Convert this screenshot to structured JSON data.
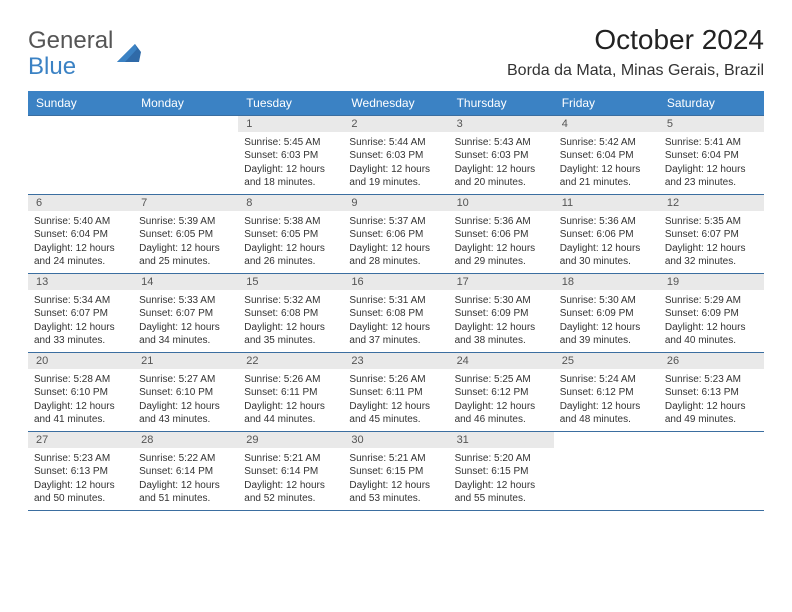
{
  "logo": {
    "line1": "General",
    "line2": "Blue"
  },
  "title": "October 2024",
  "location": "Borda da Mata, Minas Gerais, Brazil",
  "dayHeaders": [
    "Sunday",
    "Monday",
    "Tuesday",
    "Wednesday",
    "Thursday",
    "Friday",
    "Saturday"
  ],
  "colors": {
    "headerBg": "#3b82c4",
    "headerText": "#ffffff",
    "dayNumBg": "#e9e9e9",
    "border": "#3b6ea0",
    "text": "#333333"
  },
  "weeks": [
    [
      {
        "empty": true
      },
      {
        "empty": true
      },
      {
        "num": "1",
        "sunrise": "Sunrise: 5:45 AM",
        "sunset": "Sunset: 6:03 PM",
        "daylight1": "Daylight: 12 hours",
        "daylight2": "and 18 minutes."
      },
      {
        "num": "2",
        "sunrise": "Sunrise: 5:44 AM",
        "sunset": "Sunset: 6:03 PM",
        "daylight1": "Daylight: 12 hours",
        "daylight2": "and 19 minutes."
      },
      {
        "num": "3",
        "sunrise": "Sunrise: 5:43 AM",
        "sunset": "Sunset: 6:03 PM",
        "daylight1": "Daylight: 12 hours",
        "daylight2": "and 20 minutes."
      },
      {
        "num": "4",
        "sunrise": "Sunrise: 5:42 AM",
        "sunset": "Sunset: 6:04 PM",
        "daylight1": "Daylight: 12 hours",
        "daylight2": "and 21 minutes."
      },
      {
        "num": "5",
        "sunrise": "Sunrise: 5:41 AM",
        "sunset": "Sunset: 6:04 PM",
        "daylight1": "Daylight: 12 hours",
        "daylight2": "and 23 minutes."
      }
    ],
    [
      {
        "num": "6",
        "sunrise": "Sunrise: 5:40 AM",
        "sunset": "Sunset: 6:04 PM",
        "daylight1": "Daylight: 12 hours",
        "daylight2": "and 24 minutes."
      },
      {
        "num": "7",
        "sunrise": "Sunrise: 5:39 AM",
        "sunset": "Sunset: 6:05 PM",
        "daylight1": "Daylight: 12 hours",
        "daylight2": "and 25 minutes."
      },
      {
        "num": "8",
        "sunrise": "Sunrise: 5:38 AM",
        "sunset": "Sunset: 6:05 PM",
        "daylight1": "Daylight: 12 hours",
        "daylight2": "and 26 minutes."
      },
      {
        "num": "9",
        "sunrise": "Sunrise: 5:37 AM",
        "sunset": "Sunset: 6:06 PM",
        "daylight1": "Daylight: 12 hours",
        "daylight2": "and 28 minutes."
      },
      {
        "num": "10",
        "sunrise": "Sunrise: 5:36 AM",
        "sunset": "Sunset: 6:06 PM",
        "daylight1": "Daylight: 12 hours",
        "daylight2": "and 29 minutes."
      },
      {
        "num": "11",
        "sunrise": "Sunrise: 5:36 AM",
        "sunset": "Sunset: 6:06 PM",
        "daylight1": "Daylight: 12 hours",
        "daylight2": "and 30 minutes."
      },
      {
        "num": "12",
        "sunrise": "Sunrise: 5:35 AM",
        "sunset": "Sunset: 6:07 PM",
        "daylight1": "Daylight: 12 hours",
        "daylight2": "and 32 minutes."
      }
    ],
    [
      {
        "num": "13",
        "sunrise": "Sunrise: 5:34 AM",
        "sunset": "Sunset: 6:07 PM",
        "daylight1": "Daylight: 12 hours",
        "daylight2": "and 33 minutes."
      },
      {
        "num": "14",
        "sunrise": "Sunrise: 5:33 AM",
        "sunset": "Sunset: 6:07 PM",
        "daylight1": "Daylight: 12 hours",
        "daylight2": "and 34 minutes."
      },
      {
        "num": "15",
        "sunrise": "Sunrise: 5:32 AM",
        "sunset": "Sunset: 6:08 PM",
        "daylight1": "Daylight: 12 hours",
        "daylight2": "and 35 minutes."
      },
      {
        "num": "16",
        "sunrise": "Sunrise: 5:31 AM",
        "sunset": "Sunset: 6:08 PM",
        "daylight1": "Daylight: 12 hours",
        "daylight2": "and 37 minutes."
      },
      {
        "num": "17",
        "sunrise": "Sunrise: 5:30 AM",
        "sunset": "Sunset: 6:09 PM",
        "daylight1": "Daylight: 12 hours",
        "daylight2": "and 38 minutes."
      },
      {
        "num": "18",
        "sunrise": "Sunrise: 5:30 AM",
        "sunset": "Sunset: 6:09 PM",
        "daylight1": "Daylight: 12 hours",
        "daylight2": "and 39 minutes."
      },
      {
        "num": "19",
        "sunrise": "Sunrise: 5:29 AM",
        "sunset": "Sunset: 6:09 PM",
        "daylight1": "Daylight: 12 hours",
        "daylight2": "and 40 minutes."
      }
    ],
    [
      {
        "num": "20",
        "sunrise": "Sunrise: 5:28 AM",
        "sunset": "Sunset: 6:10 PM",
        "daylight1": "Daylight: 12 hours",
        "daylight2": "and 41 minutes."
      },
      {
        "num": "21",
        "sunrise": "Sunrise: 5:27 AM",
        "sunset": "Sunset: 6:10 PM",
        "daylight1": "Daylight: 12 hours",
        "daylight2": "and 43 minutes."
      },
      {
        "num": "22",
        "sunrise": "Sunrise: 5:26 AM",
        "sunset": "Sunset: 6:11 PM",
        "daylight1": "Daylight: 12 hours",
        "daylight2": "and 44 minutes."
      },
      {
        "num": "23",
        "sunrise": "Sunrise: 5:26 AM",
        "sunset": "Sunset: 6:11 PM",
        "daylight1": "Daylight: 12 hours",
        "daylight2": "and 45 minutes."
      },
      {
        "num": "24",
        "sunrise": "Sunrise: 5:25 AM",
        "sunset": "Sunset: 6:12 PM",
        "daylight1": "Daylight: 12 hours",
        "daylight2": "and 46 minutes."
      },
      {
        "num": "25",
        "sunrise": "Sunrise: 5:24 AM",
        "sunset": "Sunset: 6:12 PM",
        "daylight1": "Daylight: 12 hours",
        "daylight2": "and 48 minutes."
      },
      {
        "num": "26",
        "sunrise": "Sunrise: 5:23 AM",
        "sunset": "Sunset: 6:13 PM",
        "daylight1": "Daylight: 12 hours",
        "daylight2": "and 49 minutes."
      }
    ],
    [
      {
        "num": "27",
        "sunrise": "Sunrise: 5:23 AM",
        "sunset": "Sunset: 6:13 PM",
        "daylight1": "Daylight: 12 hours",
        "daylight2": "and 50 minutes."
      },
      {
        "num": "28",
        "sunrise": "Sunrise: 5:22 AM",
        "sunset": "Sunset: 6:14 PM",
        "daylight1": "Daylight: 12 hours",
        "daylight2": "and 51 minutes."
      },
      {
        "num": "29",
        "sunrise": "Sunrise: 5:21 AM",
        "sunset": "Sunset: 6:14 PM",
        "daylight1": "Daylight: 12 hours",
        "daylight2": "and 52 minutes."
      },
      {
        "num": "30",
        "sunrise": "Sunrise: 5:21 AM",
        "sunset": "Sunset: 6:15 PM",
        "daylight1": "Daylight: 12 hours",
        "daylight2": "and 53 minutes."
      },
      {
        "num": "31",
        "sunrise": "Sunrise: 5:20 AM",
        "sunset": "Sunset: 6:15 PM",
        "daylight1": "Daylight: 12 hours",
        "daylight2": "and 55 minutes."
      },
      {
        "empty": true
      },
      {
        "empty": true
      }
    ]
  ]
}
